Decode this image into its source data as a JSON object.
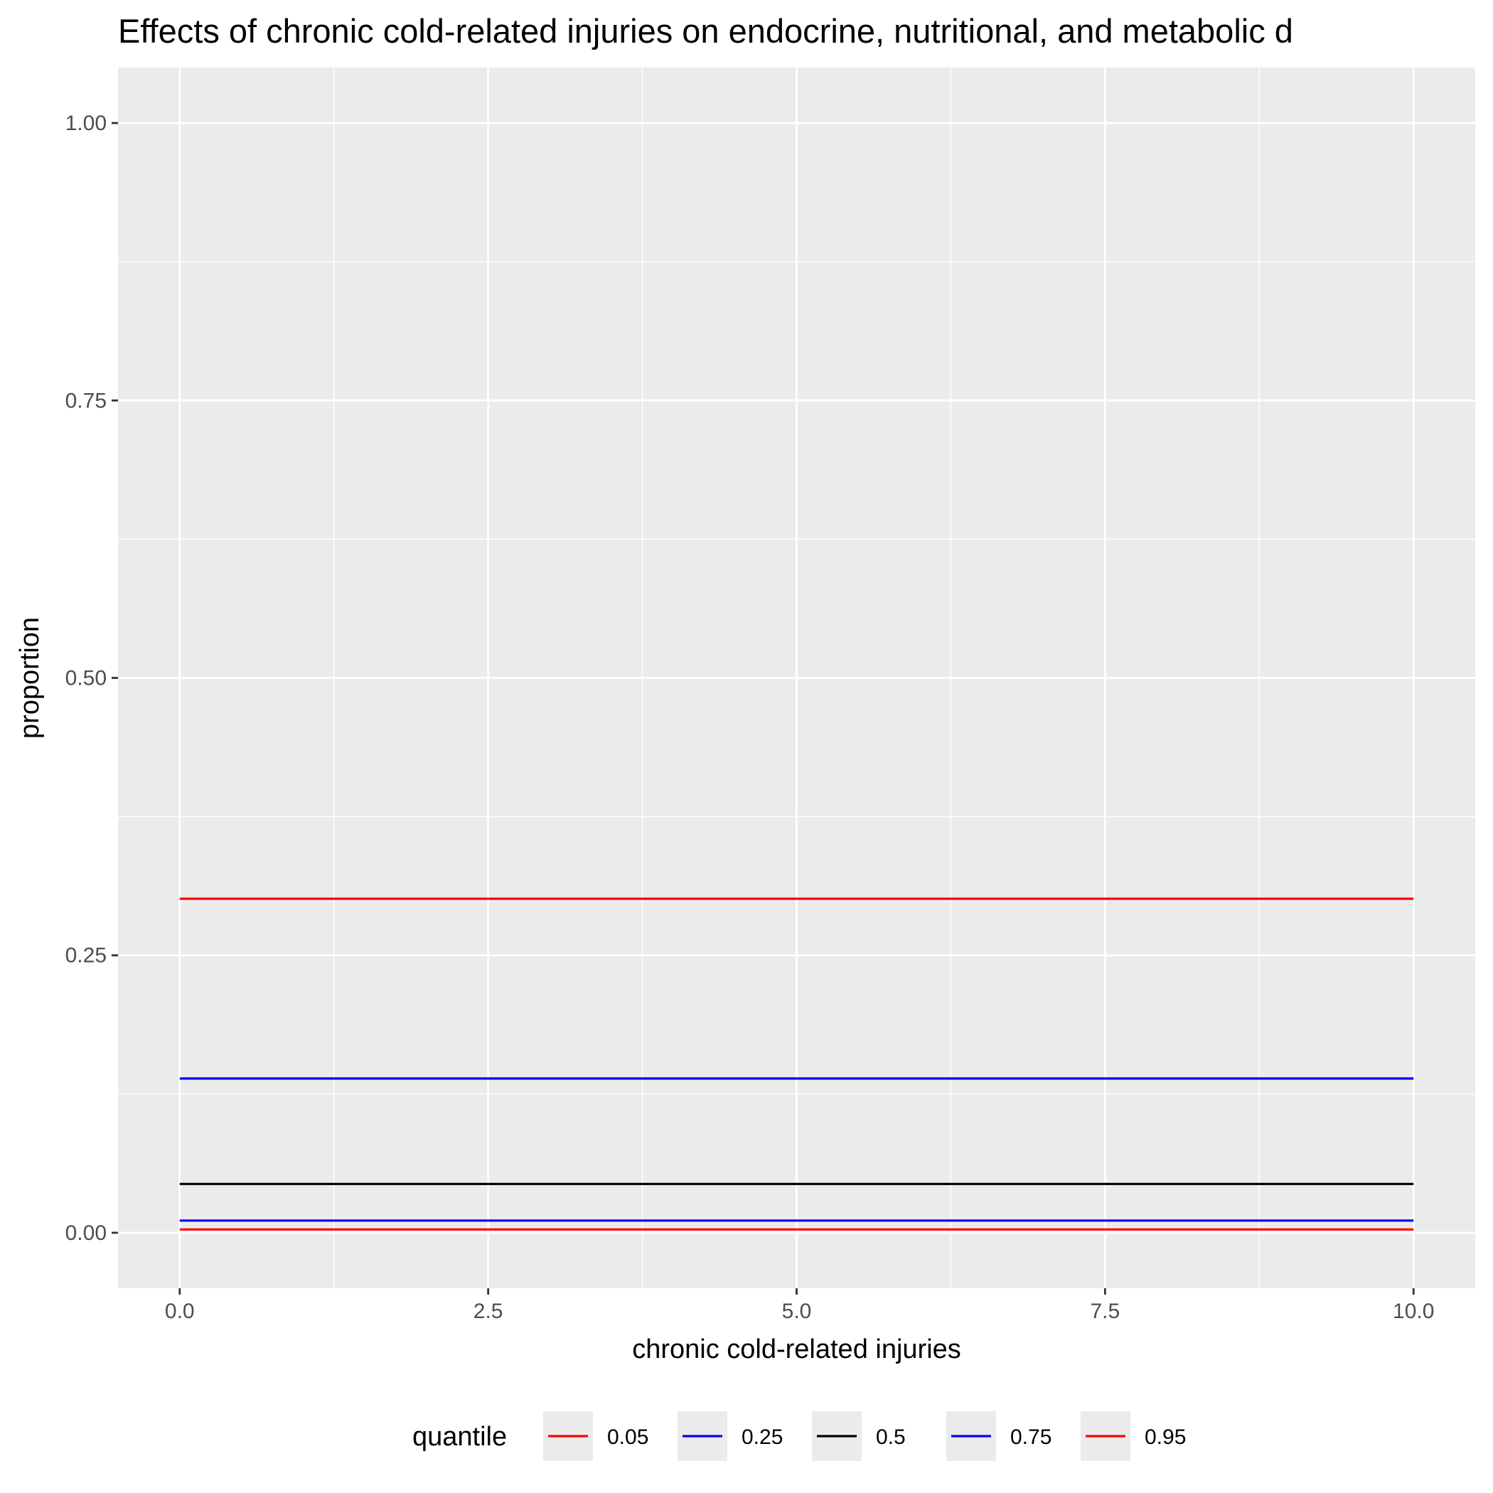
{
  "chart_data": {
    "type": "line",
    "title": "Effects of chronic cold-related injuries on endocrine, nutritional, and metabolic d",
    "xlabel": "chronic cold-related injuries",
    "ylabel": "proportion",
    "xlim": [
      -0.5,
      10.5
    ],
    "ylim": [
      -0.05,
      1.05
    ],
    "x_ticks": [
      0,
      2.5,
      5,
      7.5,
      10
    ],
    "x_tick_labels": [
      "0.0",
      "2.5",
      "5.0",
      "7.5",
      "10.0"
    ],
    "y_ticks": [
      0,
      0.25,
      0.5,
      0.75,
      1
    ],
    "y_tick_labels": [
      "0.00",
      "0.25",
      "0.50",
      "0.75",
      "1.00"
    ],
    "grid": true,
    "background": "#ebebeb",
    "legend": {
      "title": "quantile",
      "position": "bottom"
    },
    "x": [
      0,
      10
    ],
    "series": [
      {
        "name": "0.05",
        "color": "#ff0000",
        "values": [
          0.003,
          0.003
        ]
      },
      {
        "name": "0.25",
        "color": "#0000ff",
        "values": [
          0.011,
          0.011
        ]
      },
      {
        "name": "0.5",
        "color": "#000000",
        "values": [
          0.044,
          0.044
        ]
      },
      {
        "name": "0.75",
        "color": "#0000ff",
        "values": [
          0.139,
          0.139
        ]
      },
      {
        "name": "0.95",
        "color": "#ff0000",
        "values": [
          0.301,
          0.301
        ]
      }
    ]
  }
}
